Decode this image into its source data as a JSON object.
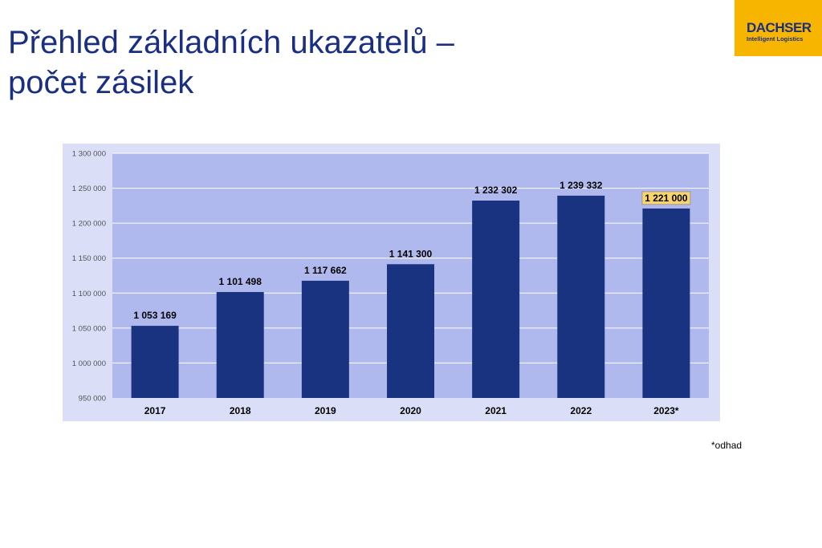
{
  "slide": {
    "title_line1": "Přehled základních ukazatelů –",
    "title_line2": "počet zásilek",
    "footnote": "*odhad"
  },
  "logo": {
    "name": "DACHSER",
    "tagline": "Intelligent Logistics",
    "color": "#f7b500"
  },
  "chart_data": {
    "type": "bar",
    "title": "",
    "xlabel": "",
    "ylabel": "",
    "categories": [
      "2017",
      "2018",
      "2019",
      "2020",
      "2021",
      "2022",
      "2023*"
    ],
    "values": [
      1053169,
      1101498,
      1117662,
      1141300,
      1232302,
      1239332,
      1221000
    ],
    "value_labels": [
      "1 053 169",
      "1 101 498",
      "1 117 662",
      "1 141 300",
      "1 232 302",
      "1 239 332",
      "1 221 000"
    ],
    "highlighted_index": 6,
    "ylim": [
      950000,
      1300000
    ],
    "yticks": [
      950000,
      1000000,
      1050000,
      1100000,
      1150000,
      1200000,
      1250000,
      1300000
    ],
    "ytick_labels": [
      "950 000",
      "1 000 000",
      "1 050 000",
      "1 100 000",
      "1 150 000",
      "1 200 000",
      "1 250 000",
      "1 300 000"
    ],
    "grid": true,
    "legend": "none",
    "colors": {
      "bar": "#1a3380",
      "plot_background": "#b0b9ee",
      "chart_background": "#dadff7",
      "gridline": "#ffffff",
      "highlight_label_bg": "#f9d46a"
    }
  }
}
